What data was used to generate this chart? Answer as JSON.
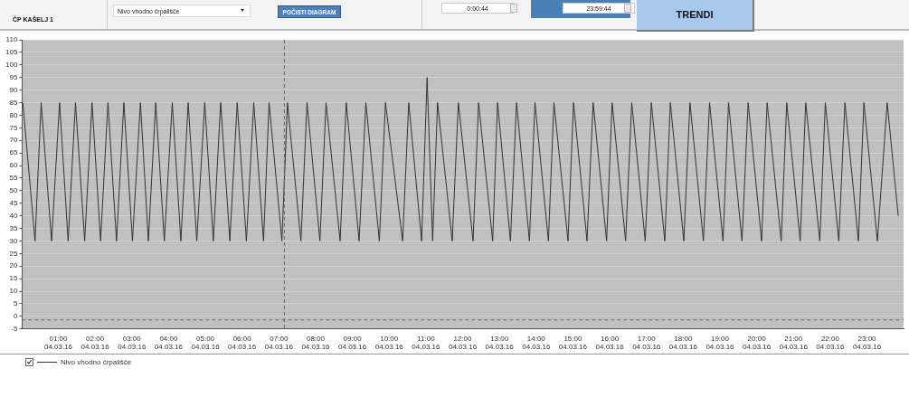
{
  "chart_data": {
    "type": "line",
    "title": "ČP KAŠELJ 1",
    "annotations": [
      "Nivo vhodno črpališče",
      "POČISTI DIAGRAM",
      "0:00:44",
      "23:59:44",
      "TRENDI"
    ],
    "x": [
      "--03-04T00:02",
      "--03-04T00:22",
      "--03-04T00:32",
      "--03-04T00:49",
      "--03-04T01:02",
      "--03-04T01:16",
      "--03-04T01:28",
      "--03-04T01:43",
      "--03-04T01:55",
      "--03-04T02:09",
      "--03-04T02:21",
      "--03-04T02:35",
      "--03-04T02:47",
      "--03-04T03:01",
      "--03-04T03:14",
      "--03-04T03:27",
      "--03-04T03:39",
      "--03-04T03:53",
      "--03-04T04:06",
      "--03-04T04:20",
      "--03-04T04:32",
      "--03-04T04:46",
      "--03-04T04:59",
      "--03-04T05:13",
      "--03-04T05:25",
      "--03-04T05:40",
      "--03-04T05:52",
      "--03-04T06:07",
      "--03-04T06:19",
      "--03-04T06:35",
      "--03-04T06:44",
      "--03-04T07:05",
      "--03-04T07:14",
      "--03-04T07:36",
      "--03-04T07:46",
      "--03-04T08:07",
      "--03-04T08:17",
      "--03-04T08:40",
      "--03-04T08:50",
      "--03-04T09:11",
      "--03-04T09:22",
      "--03-04T09:44",
      "--03-04T09:54",
      "--03-04T10:22",
      "--03-04T10:32",
      "--03-04T10:53",
      "--03-04T11:02",
      "--03-04T11:11",
      "--03-04T11:19",
      "--03-04T11:43",
      "--03-04T11:53",
      "--03-04T12:17",
      "--03-04T12:26",
      "--03-04T12:49",
      "--03-04T12:57",
      "--03-04T13:18",
      "--03-04T13:28",
      "--03-04T13:49",
      "--03-04T13:58",
      "--03-04T14:20",
      "--03-04T14:29",
      "--03-04T14:52",
      "--03-04T15:01",
      "--03-04T15:23",
      "--03-04T15:33",
      "--03-04T15:55",
      "--03-04T16:04",
      "--03-04T16:26",
      "--03-04T16:36",
      "--03-04T16:58",
      "--03-04T17:08",
      "--03-04T17:30",
      "--03-04T17:39",
      "--03-04T18:01",
      "--03-04T18:11",
      "--03-04T18:33",
      "--03-04T18:43",
      "--03-04T19:05",
      "--03-04T19:14",
      "--03-04T19:36",
      "--03-04T19:46",
      "--03-04T20:08",
      "--03-04T20:17",
      "--03-04T20:40",
      "--03-04T20:49",
      "--03-04T21:11",
      "--03-04T21:20",
      "--03-04T21:43",
      "--03-04T21:52",
      "--03-04T22:14",
      "--03-04T22:24",
      "--03-04T22:46",
      "--03-04T22:55",
      "--03-04T23:17",
      "--03-04T23:33",
      "--03-04T23:51"
    ],
    "series": [
      {
        "name": "Nivo vhodno črpališče",
        "color": "#333333",
        "values": [
          85,
          30,
          85,
          30,
          85,
          30,
          85,
          30,
          85,
          30,
          85,
          30,
          85,
          30,
          85,
          30,
          85,
          30,
          85,
          30,
          85,
          30,
          85,
          30,
          85,
          30,
          85,
          30,
          85,
          30,
          85,
          30,
          85,
          30,
          85,
          30,
          85,
          30,
          85,
          30,
          85,
          30,
          85,
          30,
          85,
          30,
          95,
          30,
          85,
          30,
          85,
          30,
          85,
          30,
          85,
          30,
          85,
          30,
          85,
          30,
          85,
          30,
          85,
          30,
          85,
          30,
          85,
          30,
          85,
          30,
          85,
          30,
          85,
          30,
          85,
          30,
          85,
          30,
          85,
          30,
          85,
          30,
          85,
          30,
          85,
          30,
          85,
          30,
          85,
          30,
          85,
          30,
          85,
          30,
          85,
          40
        ]
      }
    ],
    "xlim": [
      "--03-04T00:00:44",
      "--03-04T23:59:44"
    ],
    "xticks": [
      {
        "value": "--03-04T01:00",
        "label": "01:00 04.03.16"
      },
      {
        "value": "--03-04T02:00",
        "label": "02:00 04.03.16"
      },
      {
        "value": "--03-04T03:00",
        "label": "03:00 04.03.16"
      },
      {
        "value": "--03-04T04:00",
        "label": "04:00 04.03.16"
      },
      {
        "value": "--03-04T05:00",
        "label": "05:00 04.03.16"
      },
      {
        "value": "--03-04T06:00",
        "label": "06:00 04.03.16"
      },
      {
        "value": "--03-04T07:00",
        "label": "07:00 04.03.16"
      },
      {
        "value": "--03-04T08:00",
        "label": "08:00 04.03.16"
      },
      {
        "value": "--03-04T09:00",
        "label": "09:00 04.03.16"
      },
      {
        "value": "--03-04T10:00",
        "label": "10:00 04.03.16"
      },
      {
        "value": "--03-04T11:00",
        "label": "11:00 04.03.16"
      },
      {
        "value": "--03-04T12:00",
        "label": "12:00 04.03.16"
      },
      {
        "value": "--03-04T13:00",
        "label": "13:00 04.03.16"
      },
      {
        "value": "--03-04T14:00",
        "label": "14:00 04.03.16"
      },
      {
        "value": "--03-04T15:00",
        "label": "15:00 04.03.16"
      },
      {
        "value": "--03-04T16:00",
        "label": "16:00 04.03.16"
      },
      {
        "value": "--03-04T17:00",
        "label": "17:00 04.03.16"
      },
      {
        "value": "--03-04T18:00",
        "label": "18:00 04.03.16"
      },
      {
        "value": "--03-04T19:00",
        "label": "19:00 04.03.16"
      },
      {
        "value": "--03-04T20:00",
        "label": "20:00 04.03.16"
      },
      {
        "value": "--03-04T21:00",
        "label": "21:00 04.03.16"
      },
      {
        "value": "--03-04T22:00",
        "label": "22:00 04.03.16"
      },
      {
        "value": "--03-04T23:00",
        "label": "23:00 04.03.16"
      }
    ],
    "ylim": [
      -5,
      110
    ],
    "yticks": [
      -5,
      0,
      5,
      10,
      15,
      20,
      25,
      30,
      35,
      40,
      45,
      50,
      55,
      60,
      65,
      70,
      75,
      80,
      85,
      90,
      95,
      100,
      105,
      110
    ],
    "ref_lines": [
      {
        "axis": "x",
        "value": "--03-04T07:09",
        "line_style": "dashed",
        "color": "#666666"
      },
      {
        "axis": "y",
        "value": -1.4,
        "line_style": "dashed",
        "color": "#666666"
      }
    ],
    "grid": "y",
    "legend": "bottom left",
    "marker": "none",
    "line_style": "solid"
  }
}
